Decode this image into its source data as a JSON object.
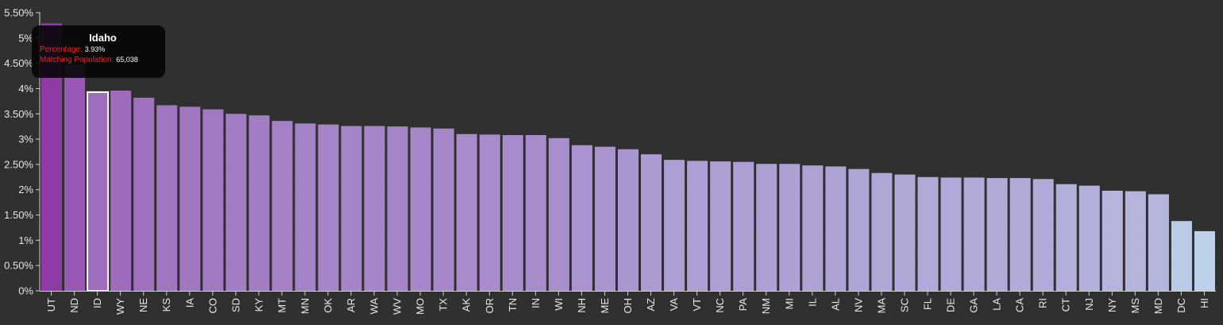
{
  "chart_data": {
    "type": "bar",
    "categories": [
      "UT",
      "ND",
      "ID",
      "WY",
      "NE",
      "KS",
      "IA",
      "CO",
      "SD",
      "KY",
      "MT",
      "MN",
      "OK",
      "AR",
      "WA",
      "WV",
      "MO",
      "TX",
      "AK",
      "OR",
      "TN",
      "IN",
      "WI",
      "NH",
      "ME",
      "OH",
      "AZ",
      "VA",
      "VT",
      "NC",
      "PA",
      "NM",
      "MI",
      "IL",
      "AL",
      "NV",
      "MA",
      "SC",
      "FL",
      "DE",
      "GA",
      "LA",
      "CA",
      "RI",
      "CT",
      "NJ",
      "NY",
      "MS",
      "MD",
      "DC",
      "HI"
    ],
    "values": [
      5.29,
      4.48,
      3.93,
      3.96,
      3.82,
      3.67,
      3.64,
      3.59,
      3.5,
      3.47,
      3.36,
      3.31,
      3.29,
      3.26,
      3.26,
      3.25,
      3.23,
      3.21,
      3.1,
      3.09,
      3.08,
      3.08,
      3.02,
      2.88,
      2.85,
      2.8,
      2.7,
      2.59,
      2.57,
      2.56,
      2.55,
      2.51,
      2.51,
      2.48,
      2.46,
      2.41,
      2.33,
      2.3,
      2.25,
      2.24,
      2.24,
      2.23,
      2.23,
      2.21,
      2.11,
      2.08,
      1.98,
      1.97,
      1.91,
      1.38,
      1.18
    ],
    "ylim": [
      0,
      5.5
    ],
    "y_ticks": [
      {
        "value": 0,
        "label": "0%"
      },
      {
        "value": 0.5,
        "label": "0.50%"
      },
      {
        "value": 1,
        "label": "1%"
      },
      {
        "value": 1.5,
        "label": "1.50%"
      },
      {
        "value": 2,
        "label": "2%"
      },
      {
        "value": 2.5,
        "label": "2.50%"
      },
      {
        "value": 3,
        "label": "3%"
      },
      {
        "value": 3.5,
        "label": "3.50%"
      },
      {
        "value": 4,
        "label": "4%"
      },
      {
        "value": 4.5,
        "label": "4.50%"
      },
      {
        "value": 5,
        "label": "5%"
      },
      {
        "value": 5.5,
        "label": "5.50%"
      }
    ],
    "color_scale": {
      "high": "#8e3ba6",
      "low": "#bdd1ea"
    },
    "grid": false,
    "highlighted_category": "ID",
    "highlight_outline_color": "#ffffff"
  },
  "tooltip": {
    "title": "Idaho",
    "percentage_label": "Percentage:",
    "percentage_value": "3.93%",
    "population_label": "Matching Population:",
    "population_value": "65,038",
    "key_color": "#ff1a1a"
  }
}
